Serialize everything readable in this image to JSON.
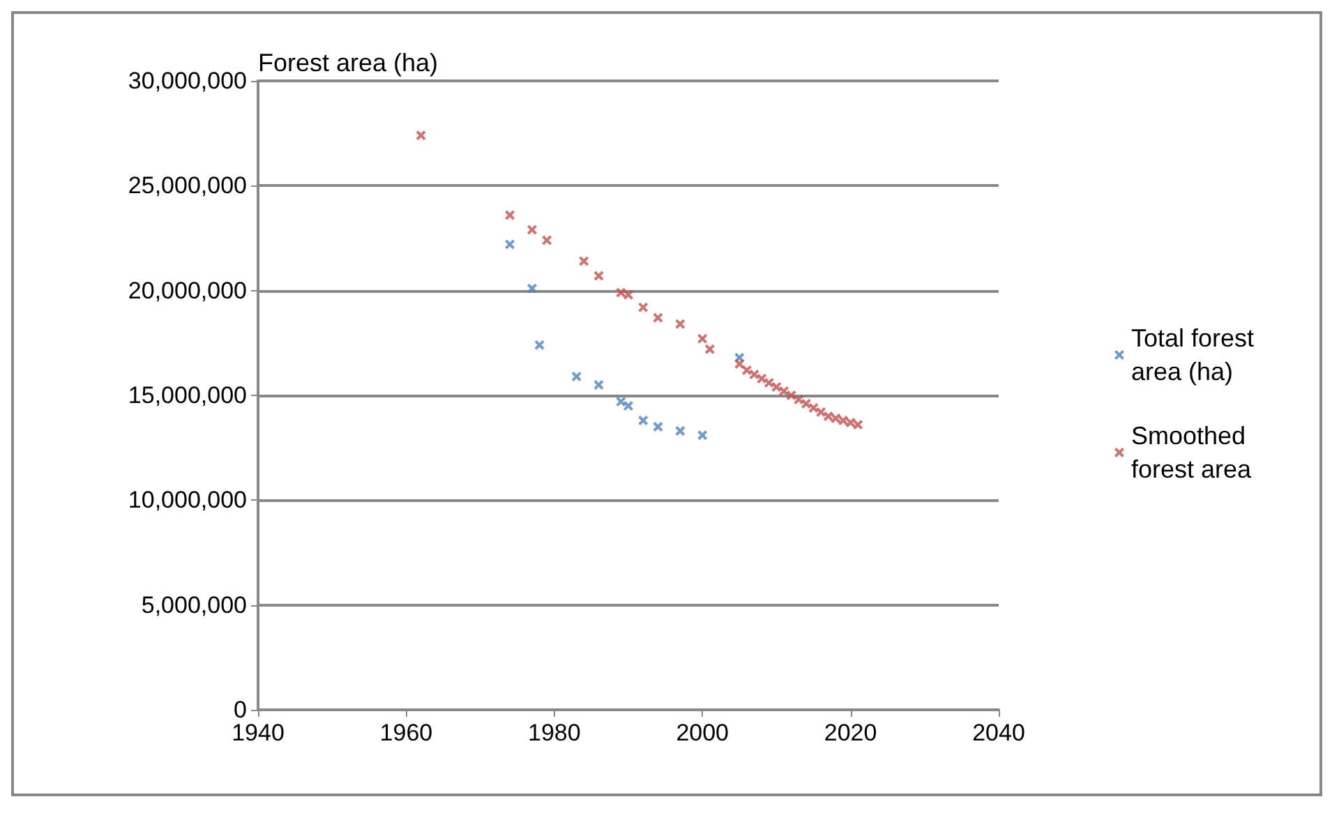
{
  "chart_data": {
    "type": "scatter",
    "ylabel": "Forest area (ha)",
    "xlim": [
      1940,
      2040
    ],
    "xticks": [
      1940,
      1960,
      1980,
      2000,
      2020,
      2040
    ],
    "ylim": [
      0,
      30000000
    ],
    "yticks": [
      0,
      {
        "value": 5000000,
        "label": "5,000,000"
      },
      {
        "value": 10000000,
        "label": "10,000,000"
      },
      {
        "value": 15000000,
        "label": "15,000,000"
      },
      {
        "value": 20000000,
        "label": "20,000,000"
      },
      {
        "value": 25000000,
        "label": "25,000,000"
      },
      {
        "value": 30000000,
        "label": "30,000,000"
      }
    ],
    "grid": "y",
    "legend": "right",
    "marker": "cross",
    "series": [
      {
        "name": "Total forest area (ha)",
        "color": "#4f81bd",
        "x": [
          1974,
          1977,
          1978,
          1983,
          1986,
          1989,
          1990,
          1992,
          1994,
          1997,
          2000,
          2005
        ],
        "values": [
          22200000,
          20100000,
          17400000,
          15900000,
          15500000,
          14700000,
          14500000,
          13800000,
          13500000,
          13300000,
          13100000,
          16800000
        ]
      },
      {
        "name": "Smoothed forest area",
        "color": "#c0504d",
        "x": [
          1962,
          1974,
          1977,
          1979,
          1984,
          1986,
          1989,
          1990,
          1992,
          1994,
          1997,
          2000,
          2001,
          2005,
          2006,
          2007,
          2008,
          2009,
          2010,
          2011,
          2012,
          2013,
          2014,
          2015,
          2016,
          2017,
          2018,
          2019,
          2020,
          2021
        ],
        "values": [
          27400000,
          23600000,
          22900000,
          22400000,
          21400000,
          20700000,
          19900000,
          19800000,
          19200000,
          18700000,
          18400000,
          17700000,
          17200000,
          16500000,
          16200000,
          16000000,
          15800000,
          15600000,
          15400000,
          15200000,
          15000000,
          14800000,
          14600000,
          14400000,
          14200000,
          14000000,
          13900000,
          13800000,
          13700000,
          13600000
        ]
      }
    ]
  }
}
